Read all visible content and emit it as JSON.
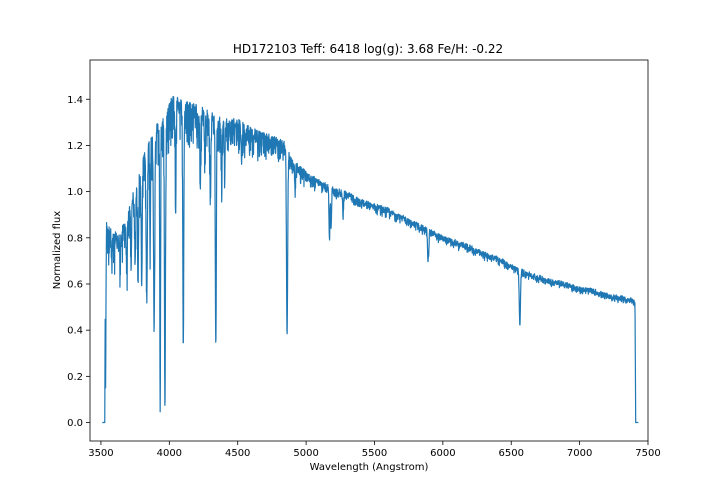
{
  "chart_data": {
    "type": "line",
    "title": "HD172103  Teff: 6418 log(g): 3.68 Fe/H: -0.22",
    "xlabel": "Wavelength (Angstrom)",
    "ylabel": "Normalized flux",
    "xlim": [
      3420,
      7500
    ],
    "ylim": [
      -0.08,
      1.57
    ],
    "xticks": [
      3500,
      4000,
      4500,
      5000,
      5500,
      6000,
      6500,
      7000,
      7500
    ],
    "yticks": [
      0.0,
      0.2,
      0.4,
      0.6,
      0.8,
      1.0,
      1.2,
      1.4
    ],
    "xtick_labels": [
      "3500",
      "4000",
      "4500",
      "5000",
      "5500",
      "6000",
      "6500",
      "7000",
      "7500"
    ],
    "ytick_labels": [
      "0.0",
      "0.2",
      "0.4",
      "0.6",
      "0.8",
      "1.0",
      "1.2",
      "1.4"
    ],
    "grid": false,
    "line_color": "#1f77b4",
    "continuum": [
      [
        3510,
        0.0
      ],
      [
        3528,
        0.0
      ],
      [
        3532,
        0.86
      ],
      [
        3560,
        0.84
      ],
      [
        3600,
        0.8
      ],
      [
        3650,
        0.82
      ],
      [
        3700,
        0.9
      ],
      [
        3750,
        1.02
      ],
      [
        3800,
        1.12
      ],
      [
        3850,
        1.22
      ],
      [
        3900,
        1.27
      ],
      [
        3950,
        1.31
      ],
      [
        4000,
        1.37
      ],
      [
        4030,
        1.43
      ],
      [
        4050,
        1.4
      ],
      [
        4100,
        1.37
      ],
      [
        4150,
        1.38
      ],
      [
        4200,
        1.36
      ],
      [
        4300,
        1.33
      ],
      [
        4400,
        1.3
      ],
      [
        4500,
        1.3
      ],
      [
        4600,
        1.27
      ],
      [
        4700,
        1.24
      ],
      [
        4800,
        1.22
      ],
      [
        4850,
        1.2
      ],
      [
        4900,
        1.13
      ],
      [
        5000,
        1.08
      ],
      [
        5100,
        1.04
      ],
      [
        5200,
        1.01
      ],
      [
        5300,
        0.99
      ],
      [
        5400,
        0.96
      ],
      [
        5500,
        0.94
      ],
      [
        5600,
        0.92
      ],
      [
        5700,
        0.89
      ],
      [
        5800,
        0.86
      ],
      [
        5900,
        0.83
      ],
      [
        6000,
        0.8
      ],
      [
        6100,
        0.78
      ],
      [
        6200,
        0.76
      ],
      [
        6300,
        0.73
      ],
      [
        6400,
        0.71
      ],
      [
        6500,
        0.68
      ],
      [
        6560,
        0.66
      ],
      [
        6600,
        0.65
      ],
      [
        6700,
        0.63
      ],
      [
        6800,
        0.61
      ],
      [
        6900,
        0.6
      ],
      [
        7000,
        0.58
      ],
      [
        7100,
        0.57
      ],
      [
        7200,
        0.55
      ],
      [
        7300,
        0.54
      ],
      [
        7380,
        0.53
      ],
      [
        7405,
        0.52
      ],
      [
        7410,
        0.0
      ],
      [
        7430,
        0.0
      ]
    ],
    "absorption_lines": [
      {
        "x": 3534,
        "depth": 0.85,
        "width": 3
      },
      {
        "x": 3580,
        "depth": 0.12,
        "width": 4
      },
      {
        "x": 3640,
        "depth": 0.15,
        "width": 4
      },
      {
        "x": 3690,
        "depth": 0.2,
        "width": 5
      },
      {
        "x": 3720,
        "depth": 0.25,
        "width": 4
      },
      {
        "x": 3750,
        "depth": 0.3,
        "width": 5
      },
      {
        "x": 3771,
        "depth": 0.35,
        "width": 5
      },
      {
        "x": 3798,
        "depth": 0.45,
        "width": 5
      },
      {
        "x": 3835,
        "depth": 0.55,
        "width": 6
      },
      {
        "x": 3860,
        "depth": 0.35,
        "width": 4
      },
      {
        "x": 3889,
        "depth": 0.65,
        "width": 6
      },
      {
        "x": 3933,
        "depth": 0.97,
        "width": 4
      },
      {
        "x": 3968,
        "depth": 0.97,
        "width": 5
      },
      {
        "x": 4046,
        "depth": 0.3,
        "width": 4
      },
      {
        "x": 4102,
        "depth": 0.75,
        "width": 5
      },
      {
        "x": 4227,
        "depth": 0.25,
        "width": 4
      },
      {
        "x": 4260,
        "depth": 0.15,
        "width": 4
      },
      {
        "x": 4300,
        "depth": 0.22,
        "width": 6
      },
      {
        "x": 4340,
        "depth": 0.75,
        "width": 5
      },
      {
        "x": 4383,
        "depth": 0.2,
        "width": 4
      },
      {
        "x": 4405,
        "depth": 0.15,
        "width": 4
      },
      {
        "x": 4528,
        "depth": 0.12,
        "width": 4
      },
      {
        "x": 4861,
        "depth": 0.68,
        "width": 6
      },
      {
        "x": 4920,
        "depth": 0.1,
        "width": 4
      },
      {
        "x": 5169,
        "depth": 0.12,
        "width": 4
      },
      {
        "x": 5172,
        "depth": 0.15,
        "width": 4
      },
      {
        "x": 5183,
        "depth": 0.17,
        "width": 4
      },
      {
        "x": 5270,
        "depth": 0.1,
        "width": 4
      },
      {
        "x": 5890,
        "depth": 0.14,
        "width": 4
      },
      {
        "x": 5896,
        "depth": 0.12,
        "width": 4
      },
      {
        "x": 6563,
        "depth": 0.37,
        "width": 6
      }
    ],
    "noise_amplitude": 0.035
  }
}
